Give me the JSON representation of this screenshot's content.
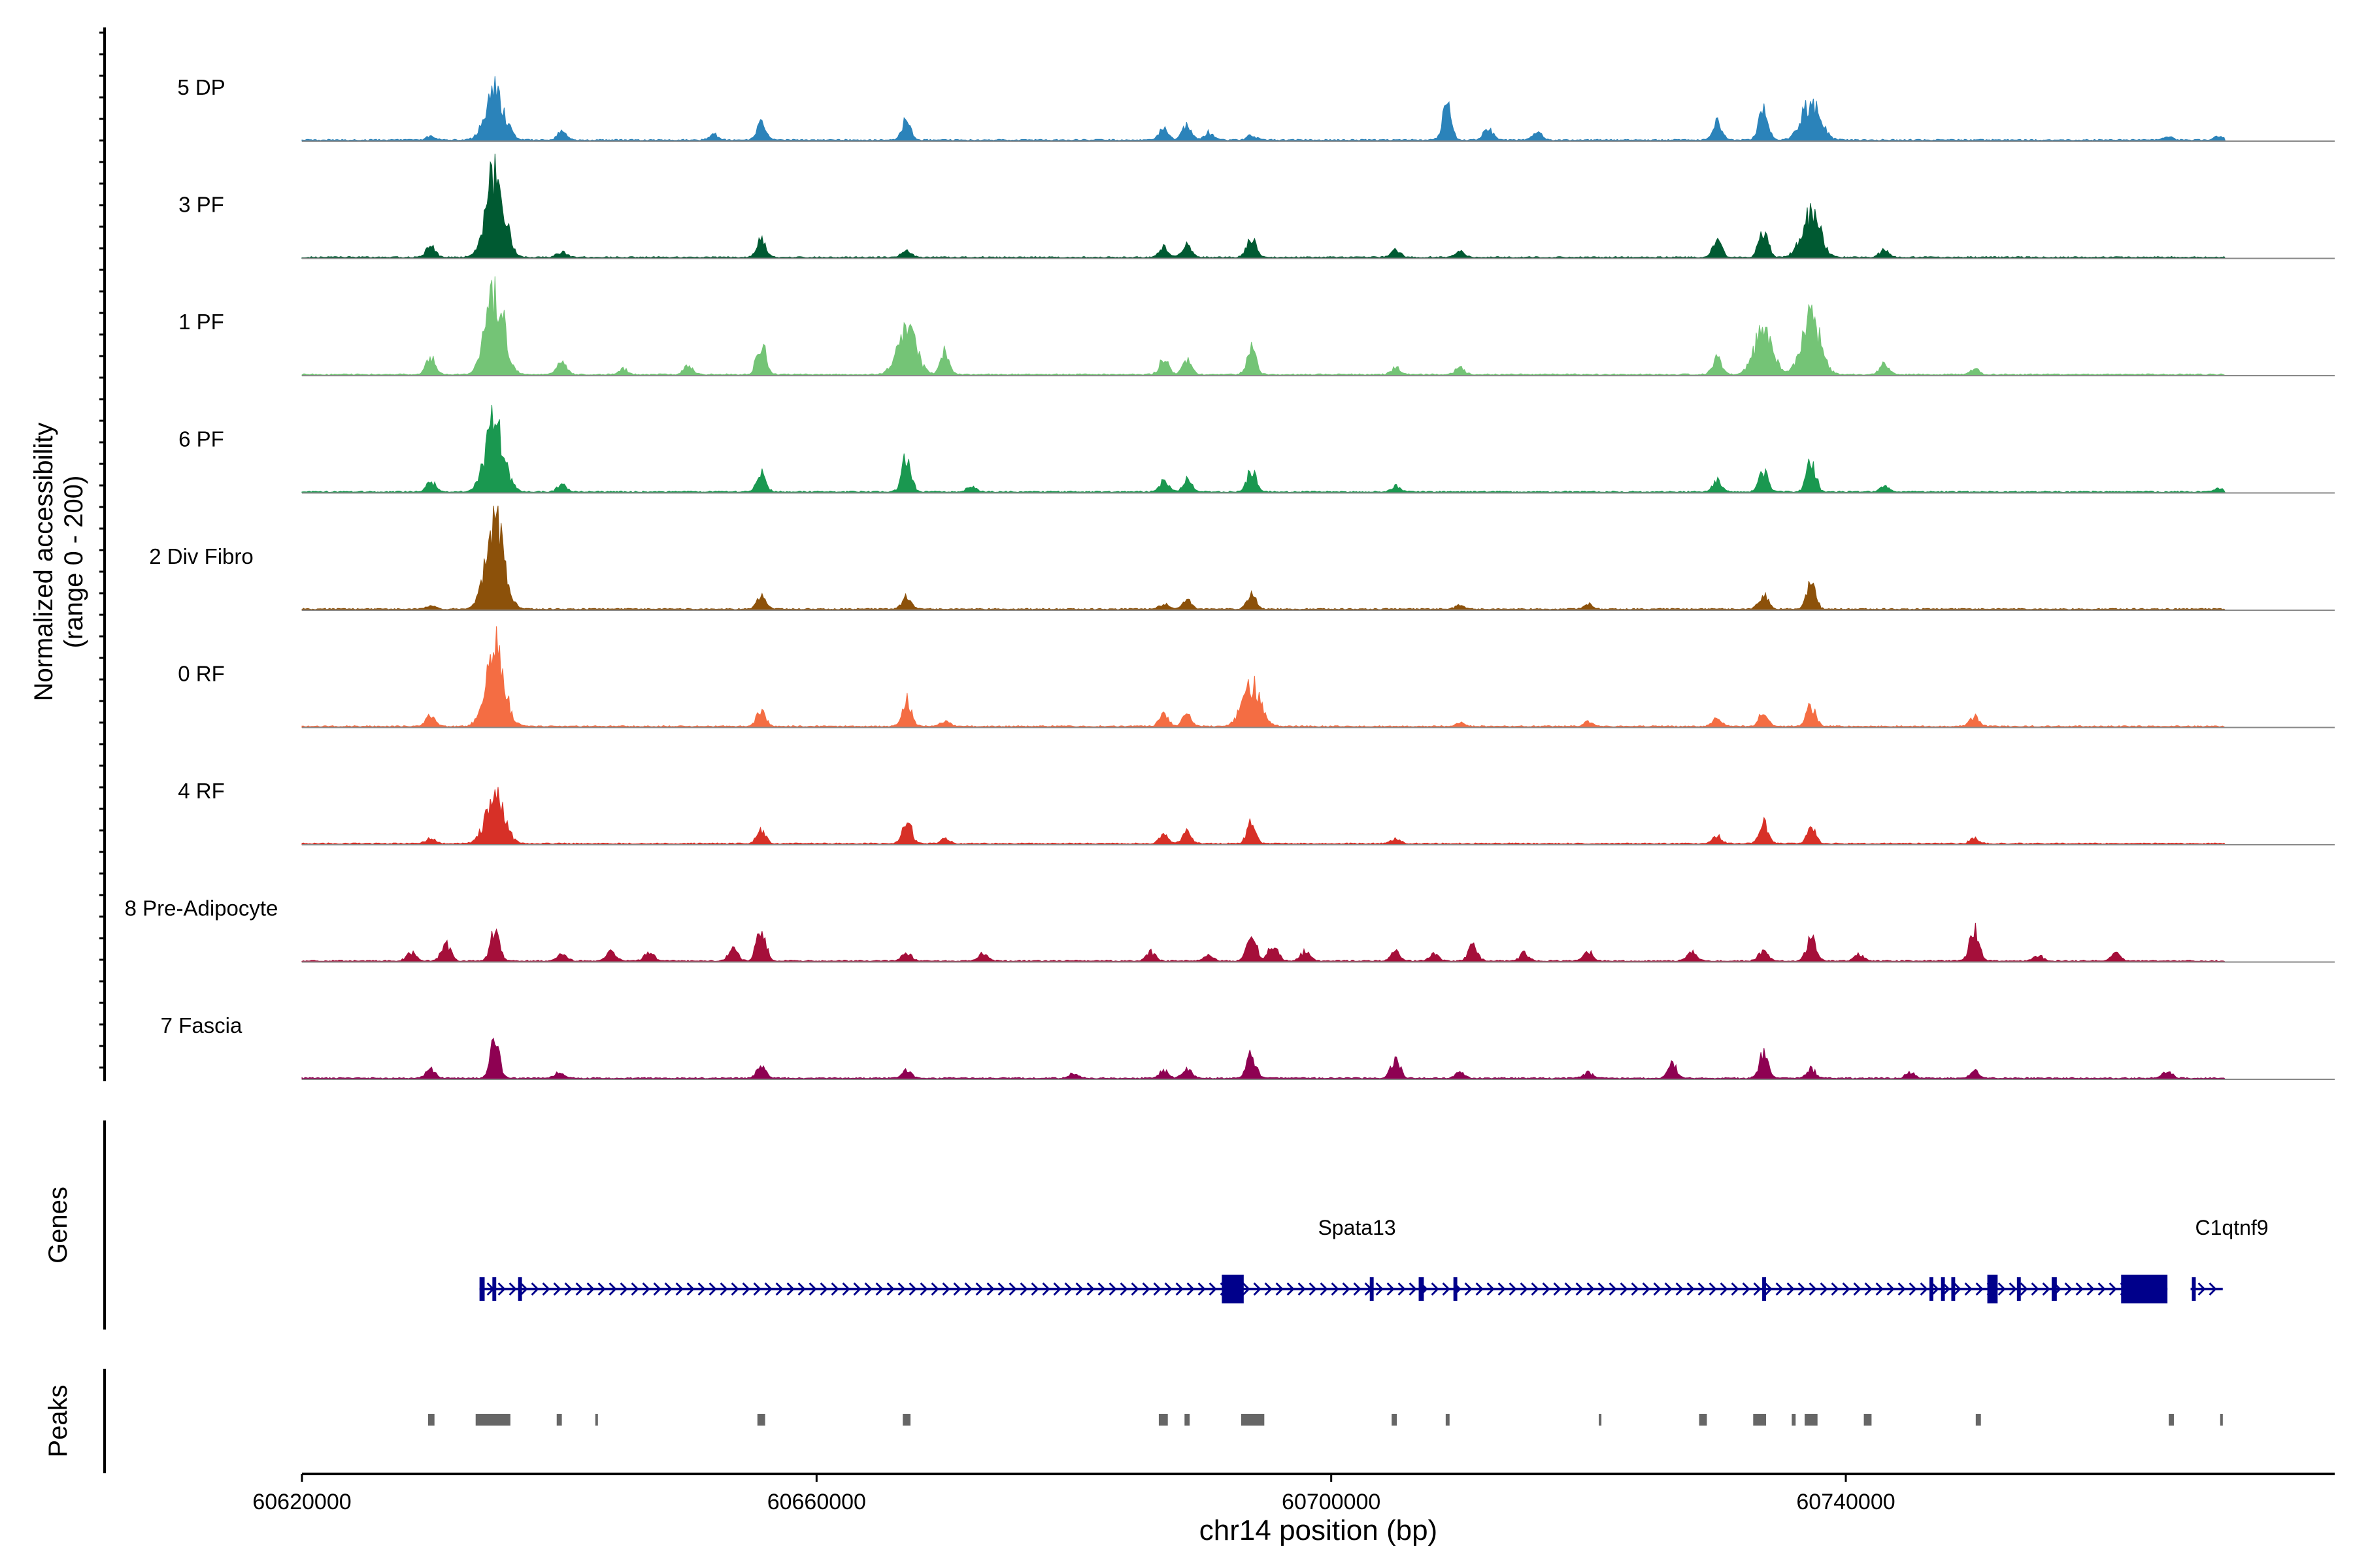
{
  "chart_data": {
    "type": "area",
    "ylabel": "Normalized accessibility",
    "ylabel_range": "(range 0 - 200)",
    "y_range": [
      0,
      200
    ],
    "xlabel": "chr14 position (bp)",
    "xlim": [
      60620000,
      60778000
    ],
    "x_ticks": [
      60620000,
      60660000,
      60700000,
      60740000
    ],
    "x_tick_labels": [
      "60620000",
      "60660000",
      "60700000",
      "60740000"
    ],
    "tracks": [
      {
        "name": "5 DP",
        "color": "#2b83ba",
        "peaks": [
          [
            60630000,
            4
          ],
          [
            60635000,
            55
          ],
          [
            60640200,
            9
          ],
          [
            60652000,
            6
          ],
          [
            60655700,
            18
          ],
          [
            60667000,
            22
          ],
          [
            60687000,
            12
          ],
          [
            60688800,
            16
          ],
          [
            60690500,
            8
          ],
          [
            60693800,
            5
          ],
          [
            60709000,
            36
          ],
          [
            60712200,
            14
          ],
          [
            60716000,
            8
          ],
          [
            60730000,
            20
          ],
          [
            60733600,
            34
          ],
          [
            60737300,
            42
          ],
          [
            60765000,
            4
          ],
          [
            60769000,
            4
          ]
        ]
      },
      {
        "name": "3 PF",
        "color": "#005a32",
        "peaks": [
          [
            60630000,
            12
          ],
          [
            60635000,
            92
          ],
          [
            60640200,
            6
          ],
          [
            60655700,
            20
          ],
          [
            60667000,
            9
          ],
          [
            60687000,
            11
          ],
          [
            60688800,
            15
          ],
          [
            60693800,
            24
          ],
          [
            60705000,
            8
          ],
          [
            60710000,
            7
          ],
          [
            60730000,
            18
          ],
          [
            60733600,
            32
          ],
          [
            60737300,
            48
          ],
          [
            60743000,
            9
          ]
        ]
      },
      {
        "name": "1 PF",
        "color": "#74c476",
        "peaks": [
          [
            60630000,
            20
          ],
          [
            60635000,
            92
          ],
          [
            60640200,
            16
          ],
          [
            60645000,
            6
          ],
          [
            60650000,
            9
          ],
          [
            60655700,
            35
          ],
          [
            60667000,
            55
          ],
          [
            60670000,
            25
          ],
          [
            60687000,
            18
          ],
          [
            60688800,
            16
          ],
          [
            60693800,
            28
          ],
          [
            60705000,
            8
          ],
          [
            60710000,
            8
          ],
          [
            60730000,
            18
          ],
          [
            60733600,
            48
          ],
          [
            60737300,
            62
          ],
          [
            60743000,
            12
          ],
          [
            60750000,
            6
          ]
        ]
      },
      {
        "name": "6 PF",
        "color": "#1a9850",
        "peaks": [
          [
            60630000,
            12
          ],
          [
            60635000,
            78
          ],
          [
            60640200,
            8
          ],
          [
            60655700,
            20
          ],
          [
            60667000,
            40
          ],
          [
            60672000,
            6
          ],
          [
            60687000,
            12
          ],
          [
            60688800,
            14
          ],
          [
            60693800,
            24
          ],
          [
            60705000,
            6
          ],
          [
            60730000,
            12
          ],
          [
            60733600,
            22
          ],
          [
            60737300,
            36
          ],
          [
            60743000,
            6
          ],
          [
            60769000,
            4
          ]
        ]
      },
      {
        "name": "2 Div Fibro",
        "color": "#8c510a",
        "peaks": [
          [
            60630000,
            4
          ],
          [
            60635000,
            98
          ],
          [
            60655700,
            14
          ],
          [
            60667000,
            14
          ],
          [
            60687000,
            6
          ],
          [
            60688800,
            10
          ],
          [
            60693800,
            16
          ],
          [
            60710000,
            4
          ],
          [
            60720000,
            6
          ],
          [
            60733600,
            16
          ],
          [
            60737300,
            28
          ]
        ]
      },
      {
        "name": "0 RF",
        "color": "#f46d43",
        "peaks": [
          [
            60630000,
            12
          ],
          [
            60635000,
            85
          ],
          [
            60655700,
            18
          ],
          [
            60667000,
            30
          ],
          [
            60670000,
            6
          ],
          [
            60687000,
            14
          ],
          [
            60688800,
            12
          ],
          [
            60693800,
            46
          ],
          [
            60710000,
            4
          ],
          [
            60720000,
            5
          ],
          [
            60730000,
            10
          ],
          [
            60733600,
            16
          ],
          [
            60737300,
            22
          ],
          [
            60750000,
            10
          ]
        ]
      },
      {
        "name": "4 RF",
        "color": "#d73027",
        "peaks": [
          [
            60630000,
            6
          ],
          [
            60635000,
            52
          ],
          [
            60655700,
            14
          ],
          [
            60667000,
            28
          ],
          [
            60670000,
            5
          ],
          [
            60687000,
            10
          ],
          [
            60688800,
            12
          ],
          [
            60693800,
            22
          ],
          [
            60705000,
            6
          ],
          [
            60730000,
            8
          ],
          [
            60733600,
            22
          ],
          [
            60737300,
            18
          ],
          [
            60750000,
            6
          ]
        ]
      },
      {
        "name": "8 Pre-Adipocyte",
        "color": "#a50f3a",
        "peaks": [
          [
            60628500,
            10
          ],
          [
            60631200,
            20
          ],
          [
            60635000,
            35
          ],
          [
            60640200,
            10
          ],
          [
            60644000,
            12
          ],
          [
            60647000,
            10
          ],
          [
            60653500,
            14
          ],
          [
            60655700,
            38
          ],
          [
            60667000,
            10
          ],
          [
            60673000,
            8
          ],
          [
            60686000,
            10
          ],
          [
            60690500,
            6
          ],
          [
            60693800,
            32
          ],
          [
            60695500,
            18
          ],
          [
            60698000,
            12
          ],
          [
            60705000,
            10
          ],
          [
            60708000,
            8
          ],
          [
            60711000,
            16
          ],
          [
            60715000,
            8
          ],
          [
            60720000,
            10
          ],
          [
            60728000,
            10
          ],
          [
            60733600,
            12
          ],
          [
            60737300,
            26
          ],
          [
            60741000,
            8
          ],
          [
            60750000,
            38
          ],
          [
            60755000,
            6
          ],
          [
            60761000,
            8
          ]
        ]
      },
      {
        "name": "7 Fascia",
        "color": "#8e0152",
        "peaks": [
          [
            60630000,
            10
          ],
          [
            60635000,
            40
          ],
          [
            60640000,
            6
          ],
          [
            60655700,
            12
          ],
          [
            60667000,
            8
          ],
          [
            60680000,
            5
          ],
          [
            60687000,
            8
          ],
          [
            60688800,
            10
          ],
          [
            60693800,
            26
          ],
          [
            60705000,
            20
          ],
          [
            60710000,
            6
          ],
          [
            60720000,
            6
          ],
          [
            60726500,
            16
          ],
          [
            60733600,
            26
          ],
          [
            60737300,
            10
          ],
          [
            60745000,
            6
          ],
          [
            60750000,
            8
          ],
          [
            60765000,
            8
          ]
        ]
      }
    ],
    "genes": [
      {
        "name": "Spata13",
        "start": 60633800,
        "end": 60765000,
        "strand": "+",
        "exons": [
          [
            60633800,
            60634200
          ],
          [
            60634800,
            60635100
          ],
          [
            60636800,
            60637100
          ],
          [
            60691500,
            60693200
          ],
          [
            60703000,
            60703300
          ],
          [
            60706800,
            60707200
          ],
          [
            60709500,
            60709800
          ],
          [
            60733500,
            60733800
          ],
          [
            60746500,
            60746800
          ],
          [
            60747400,
            60747700
          ],
          [
            60748200,
            60748500
          ],
          [
            60751000,
            60751800
          ],
          [
            60753300,
            60753600
          ],
          [
            60756000,
            60756400
          ],
          [
            60761400,
            60765000
          ]
        ]
      },
      {
        "name": "C1qtnf9",
        "start": 60766800,
        "end": 60769300,
        "strand": "+",
        "exons": [
          [
            60766900,
            60767200
          ]
        ]
      }
    ],
    "gene_label_positions": [
      60702000,
      60770000
    ],
    "peaks_track": {
      "label": "Peaks",
      "regions": [
        [
          60629800,
          60630300
        ],
        [
          60633500,
          60636200
        ],
        [
          60639800,
          60640200
        ],
        [
          60642800,
          60643000
        ],
        [
          60655400,
          60656000
        ],
        [
          60666700,
          60667300
        ],
        [
          60686600,
          60687300
        ],
        [
          60688600,
          60689000
        ],
        [
          60693000,
          60694800
        ],
        [
          60704700,
          60705100
        ],
        [
          60708900,
          60709200
        ],
        [
          60720800,
          60721000
        ],
        [
          60728600,
          60729200
        ],
        [
          60732800,
          60733800
        ],
        [
          60735800,
          60736100
        ],
        [
          60736800,
          60737800
        ],
        [
          60741400,
          60742000
        ],
        [
          60750100,
          60750500
        ],
        [
          60765100,
          60765500
        ],
        [
          60769100,
          60769200
        ]
      ]
    },
    "genes_track_label": "Genes"
  }
}
